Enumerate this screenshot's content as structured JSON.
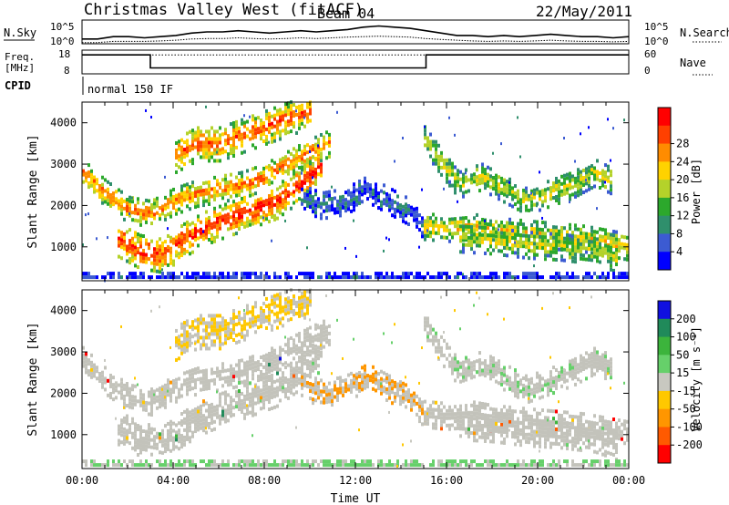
{
  "header": {
    "station": "Christmas Valley West (fitACF)",
    "beam": "Beam 04",
    "date": "22/May/2011"
  },
  "noise_panel": {
    "left_label": "N.Sky",
    "left_ticks": [
      "10^5",
      "10^0"
    ],
    "right_ticks": [
      "10^5",
      "10^0"
    ],
    "right_label": "N.Search",
    "sky_levels": [
      0.2,
      0.2,
      0.3,
      0.3,
      0.25,
      0.3,
      0.35,
      0.45,
      0.5,
      0.5,
      0.55,
      0.5,
      0.45,
      0.5,
      0.55,
      0.5,
      0.55,
      0.6,
      0.7,
      0.75,
      0.7,
      0.65,
      0.55,
      0.45,
      0.35,
      0.35,
      0.3,
      0.35,
      0.3,
      0.35,
      0.4,
      0.35,
      0.3,
      0.3,
      0.25,
      0.3
    ],
    "search_levels": [
      0.05,
      0.05,
      0.1,
      0.1,
      0.1,
      0.12,
      0.15,
      0.2,
      0.22,
      0.22,
      0.25,
      0.22,
      0.2,
      0.22,
      0.25,
      0.22,
      0.25,
      0.28,
      0.3,
      0.32,
      0.3,
      0.28,
      0.22,
      0.18,
      0.15,
      0.12,
      0.1,
      0.12,
      0.1,
      0.12,
      0.15,
      0.12,
      0.1,
      0.1,
      0.08,
      0.1
    ]
  },
  "freq_panel": {
    "left_label_1": "Freq.",
    "left_label_2": "[MHz]",
    "left_ticks": [
      "18",
      "8"
    ],
    "right_ticks": [
      "60",
      "0"
    ],
    "right_label": "Nave",
    "cpid_label": "CPID",
    "mode_text": "normal 150 IF",
    "freq_steps": [
      {
        "start_hour": 0,
        "end_hour": 3.0,
        "freq_mhz": 16
      },
      {
        "start_hour": 3.0,
        "end_hour": 15.1,
        "freq_mhz": 10.5
      },
      {
        "start_hour": 15.1,
        "end_hour": 24,
        "freq_mhz": 16
      }
    ],
    "nave": 48
  },
  "chart_data": [
    {
      "type": "heatmap",
      "name": "power",
      "ylabel": "Slant Range [km]",
      "xlabel": "",
      "xlim": [
        0,
        24
      ],
      "ylim": [
        180,
        4500
      ],
      "yticks": [
        "1000",
        "2000",
        "3000",
        "4000"
      ],
      "colorbar_label": "Power [dB]",
      "colorbar_ticks": [
        "4",
        "8",
        "12",
        "16",
        "20",
        "24",
        "28"
      ],
      "colorbar_colors": [
        "#0000ff",
        "#3c5bd2",
        "#2f8f6c",
        "#2ca82c",
        "#b4d22a",
        "#ffd200",
        "#ff8c00",
        "#ff4000",
        "#ff0000"
      ],
      "features": [
        {
          "label": "early arc",
          "points": [
            [
              0.0,
              2800
            ],
            [
              1.0,
              2300
            ],
            [
              2.0,
              1900
            ],
            [
              3.0,
              1800
            ],
            [
              4.0,
              2100
            ],
            [
              5.0,
              2300
            ],
            [
              6.0,
              2400
            ],
            [
              7.0,
              2500
            ],
            [
              8.0,
              2700
            ],
            [
              9.0,
              3000
            ],
            [
              10.0,
              3300
            ],
            [
              10.8,
              3500
            ]
          ],
          "intensity": 0.78
        },
        {
          "label": "night band",
          "points": [
            [
              1.5,
              1200
            ],
            [
              2.5,
              900
            ],
            [
              3.5,
              800
            ],
            [
              4.5,
              1200
            ],
            [
              5.5,
              1500
            ],
            [
              6.5,
              1700
            ],
            [
              7.5,
              1900
            ],
            [
              8.5,
              2100
            ],
            [
              9.5,
              2500
            ],
            [
              10.5,
              3000
            ]
          ],
          "intensity": 0.9
        },
        {
          "label": "upper band",
          "points": [
            [
              4.0,
              3200
            ],
            [
              5.0,
              3500
            ],
            [
              6.0,
              3500
            ],
            [
              7.0,
              3700
            ],
            [
              8.0,
              3900
            ],
            [
              9.0,
              4100
            ],
            [
              10.0,
              4300
            ]
          ],
          "intensity": 0.82
        },
        {
          "label": "dawn patch",
          "points": [
            [
              9.5,
              2200
            ],
            [
              10.5,
              2000
            ],
            [
              11.5,
              2100
            ],
            [
              12.5,
              2400
            ],
            [
              13.5,
              2100
            ],
            [
              14.5,
              1800
            ],
            [
              15.0,
              1500
            ]
          ],
          "intensity": 0.2
        },
        {
          "label": "morning arc",
          "points": [
            [
              15.0,
              3600
            ],
            [
              15.8,
              3000
            ],
            [
              16.5,
              2500
            ],
            [
              17.5,
              2700
            ],
            [
              18.5,
              2400
            ],
            [
              19.5,
              2100
            ],
            [
              20.5,
              2300
            ],
            [
              21.5,
              2500
            ],
            [
              22.5,
              2800
            ],
            [
              23.2,
              2600
            ]
          ],
          "intensity": 0.55
        },
        {
          "label": "low band",
          "points": [
            [
              15.0,
              1500
            ],
            [
              16.0,
              1450
            ],
            [
              17.0,
              1500
            ],
            [
              18.0,
              1400
            ],
            [
              19.0,
              1350
            ],
            [
              20.0,
              1300
            ],
            [
              21.0,
              1250
            ],
            [
              22.0,
              1200
            ],
            [
              23.0,
              1100
            ],
            [
              24.0,
              1000
            ]
          ],
          "intensity": 0.62
        },
        {
          "label": "low band 2",
          "points": [
            [
              16.5,
              1200
            ],
            [
              18.0,
              1150
            ],
            [
              19.5,
              1050
            ],
            [
              21.0,
              1000
            ],
            [
              22.5,
              900
            ],
            [
              23.5,
              700
            ]
          ],
          "intensity": 0.55
        },
        {
          "label": "ground",
          "points": [
            [
              0.0,
              250
            ],
            [
              6.0,
              250
            ],
            [
              12.0,
              250
            ],
            [
              18.0,
              250
            ],
            [
              24.0,
              250
            ]
          ],
          "intensity": 0.12
        }
      ]
    },
    {
      "type": "heatmap",
      "name": "velocity",
      "ylabel": "Slant Range [km]",
      "xlabel": "Time UT",
      "xlim": [
        0,
        24
      ],
      "ylim": [
        180,
        4500
      ],
      "xticks": [
        "00:00",
        "04:00",
        "08:00",
        "12:00",
        "16:00",
        "20:00",
        "00:00"
      ],
      "yticks": [
        "1000",
        "2000",
        "3000",
        "4000"
      ],
      "colorbar_label": "Velocity [m s⁻¹]",
      "colorbar_ticks": [
        "200",
        "100",
        "50",
        "15",
        "-15",
        "-50",
        "-100",
        "-200"
      ],
      "colorbar_colors": [
        "#1010e0",
        "#208a5a",
        "#3cb43c",
        "#66d06a",
        "#c8c8c0",
        "#ffc800",
        "#ff9600",
        "#ff5a00",
        "#ff0000"
      ],
      "gray_color": "#c3c3bb"
    }
  ]
}
